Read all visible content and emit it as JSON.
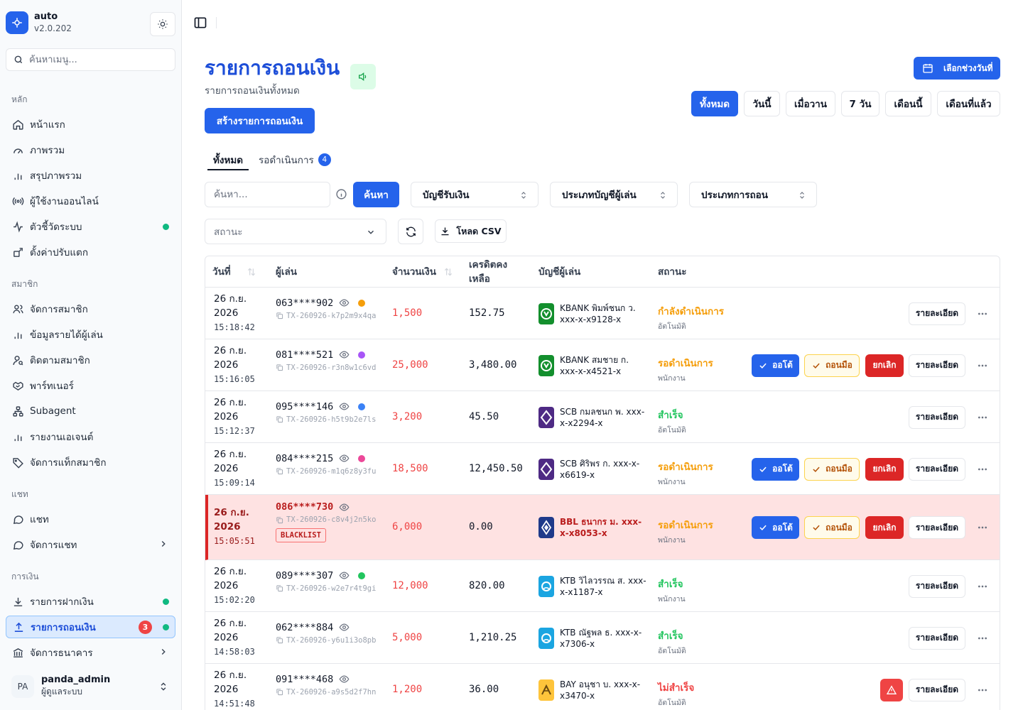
{
  "app": {
    "name": "auto",
    "version": "v2.0.202"
  },
  "sidebar": {
    "search_placeholder": "ค้นหาเมนู...",
    "groups": {
      "main": "หลัก",
      "members": "สมาชิก",
      "chat": "แชท",
      "finance": "การเงิน"
    },
    "items": {
      "home": "หน้าแรก",
      "overview": "ภาพรวม",
      "summary": "สรุปภาพรวม",
      "online_users": "ผู้ใช้งานออนไลน์",
      "system_metrics": "ตัวชี้วัดระบบ",
      "decor_settings": "ตั้งค่าปรับแตก",
      "manage_members": "จัดการสมาชิก",
      "player_income": "ข้อมูลรายได้ผู้เล่น",
      "track_members": "ติดตามสมาชิก",
      "partners": "พาร์ทเนอร์",
      "subagent": "Subagent",
      "agent_report": "รายงานเอเจนต์",
      "member_tags": "จัดการแท็กสมาชิก",
      "chat": "แชท",
      "manage_chat": "จัดการแชท",
      "deposits": "รายการฝากเงิน",
      "withdrawals": "รายการถอนเงิน",
      "withdrawals_badge": "3",
      "banks": "จัดการธนาคาร"
    },
    "user": {
      "initials": "PA",
      "name": "panda_admin",
      "role": "ผู้ดูแลระบบ"
    }
  },
  "header": {
    "title": "รายการถอนเงิน",
    "subtitle": "รายการถอนเงินทั้งหมด",
    "create_button": "สร้างรายการถอนเงิน",
    "range_button": "เลือกช่วงวันที่",
    "period_filters": [
      "ทั้งหมด",
      "วันนี้",
      "เมื่อวาน",
      "7 วัน",
      "เดือนนี้",
      "เดือนที่แล้ว"
    ],
    "active_period": "ทั้งหมด"
  },
  "tabs": {
    "all": "ทั้งหมด",
    "pending": "รอดำเนินการ",
    "pending_count": "4"
  },
  "filters": {
    "search_placeholder": "ค้นหา...",
    "search_button": "ค้นหา",
    "receive_account": "บัญชีรับเงิน",
    "player_account_type": "ประเภทบัญชีผู้เล่น",
    "withdraw_type": "ประเภทการถอน",
    "status_placeholder": "สถานะ",
    "csv_button": "โหลด CSV"
  },
  "table": {
    "headers": {
      "date": "วันที่",
      "player": "ผู้เล่น",
      "amount": "จำนวนเงิน",
      "credit": "เครดิตคงเหลือ",
      "account": "บัญชีผู้เล่น",
      "status": "สถานะ"
    },
    "labels": {
      "auto": "ออโต้",
      "manual": "ถอนมือ",
      "cancel": "ยกเลิก",
      "detail": "รายละเอียด",
      "blacklist": "BLACKLIST"
    },
    "rows": [
      {
        "day": "26 ก.ย.",
        "year": "2026",
        "time": "15:18:42",
        "phone": "063****902",
        "dot": "#f59e0b",
        "txid": "TX-260926-k7p2m9x4qa",
        "amount": "1,500",
        "credit": "152.75",
        "bank": "kbank",
        "account": "KBANK พิมพ์ชนก ว. xxx-x-x9128-x",
        "status": "กำลังดำเนินการ",
        "status_class": "st-processing",
        "by": "อัตโนมัติ",
        "actions": false,
        "warn": false,
        "blacklist": false
      },
      {
        "day": "26 ก.ย.",
        "year": "2026",
        "time": "15:16:05",
        "phone": "081****521",
        "dot": "#a855f7",
        "txid": "TX-260926-r3n8w1c6vd",
        "amount": "25,000",
        "credit": "3,480.00",
        "bank": "kbank",
        "account": "KBANK สมชาย ก. xxx-x-x4521-x",
        "status": "รอดำเนินการ",
        "status_class": "st-waiting",
        "by": "พนักงาน",
        "actions": true,
        "warn": false,
        "blacklist": false
      },
      {
        "day": "26 ก.ย.",
        "year": "2026",
        "time": "15:12:37",
        "phone": "095****146",
        "dot": "#3b82f6",
        "txid": "TX-260926-h5t9b2e7ls",
        "amount": "3,200",
        "credit": "45.50",
        "bank": "scb",
        "account": "SCB กมลชนก พ. xxx-x-x2294-x",
        "status": "สำเร็จ",
        "status_class": "st-success",
        "by": "อัตโนมัติ",
        "actions": false,
        "warn": false,
        "blacklist": false
      },
      {
        "day": "26 ก.ย.",
        "year": "2026",
        "time": "15:09:14",
        "phone": "084****215",
        "dot": "#ec4899",
        "txid": "TX-260926-m1q6z8y3fu",
        "amount": "18,500",
        "credit": "12,450.50",
        "bank": "scb",
        "account": "SCB ศิริพร ก. xxx-x-x6619-x",
        "status": "รอดำเนินการ",
        "status_class": "st-waiting",
        "by": "พนักงาน",
        "actions": true,
        "warn": false,
        "blacklist": false
      },
      {
        "day": "26 ก.ย.",
        "year": "2026",
        "time": "15:05:51",
        "phone": "086****730",
        "dot": "",
        "txid": "TX-260926-c8v4j2n5ko",
        "amount": "6,000",
        "credit": "0.00",
        "bank": "bbl",
        "account": "BBL ธนากร ม. xxx-x-x8053-x",
        "status": "รอดำเนินการ",
        "status_class": "st-waiting",
        "by": "พนักงาน",
        "actions": true,
        "warn": false,
        "blacklist": true
      },
      {
        "day": "26 ก.ย.",
        "year": "2026",
        "time": "15:02:20",
        "phone": "089****307",
        "dot": "#22c55e",
        "txid": "TX-260926-w2e7r4t9gi",
        "amount": "12,000",
        "credit": "820.00",
        "bank": "ktb",
        "account": "KTB วิไลวรรณ ส. xxx-x-x1187-x",
        "status": "สำเร็จ",
        "status_class": "st-success",
        "by": "พนักงาน",
        "actions": false,
        "warn": false,
        "blacklist": false
      },
      {
        "day": "26 ก.ย.",
        "year": "2026",
        "time": "14:58:03",
        "phone": "062****884",
        "dot": "",
        "txid": "TX-260926-y6u1i3o8pb",
        "amount": "5,000",
        "credit": "1,210.25",
        "bank": "ktb",
        "account": "KTB ณัฐพล ธ. xxx-x-x7306-x",
        "status": "สำเร็จ",
        "status_class": "st-success",
        "by": "อัตโนมัติ",
        "actions": false,
        "warn": false,
        "blacklist": false
      },
      {
        "day": "26 ก.ย.",
        "year": "2026",
        "time": "14:51:48",
        "phone": "091****468",
        "dot": "",
        "txid": "TX-260926-a9s5d2f7hn",
        "amount": "1,200",
        "credit": "36.00",
        "bank": "bay",
        "account": "BAY อนุชา บ. xxx-x-x3470-x",
        "status": "ไม่สำเร็จ",
        "status_class": "st-fail",
        "by": "อัตโนมัติ",
        "actions": false,
        "warn": true,
        "blacklist": false
      }
    ]
  },
  "colors": {
    "primary": "#2563eb",
    "danger": "#dc2626",
    "warning": "#f59e0b",
    "success": "#22c55e",
    "kbank": "#138f2d",
    "scb": "#4e2a84",
    "bbl": "#1e3a8a",
    "ktb": "#1ba5e1",
    "bay": "#fec43b"
  }
}
